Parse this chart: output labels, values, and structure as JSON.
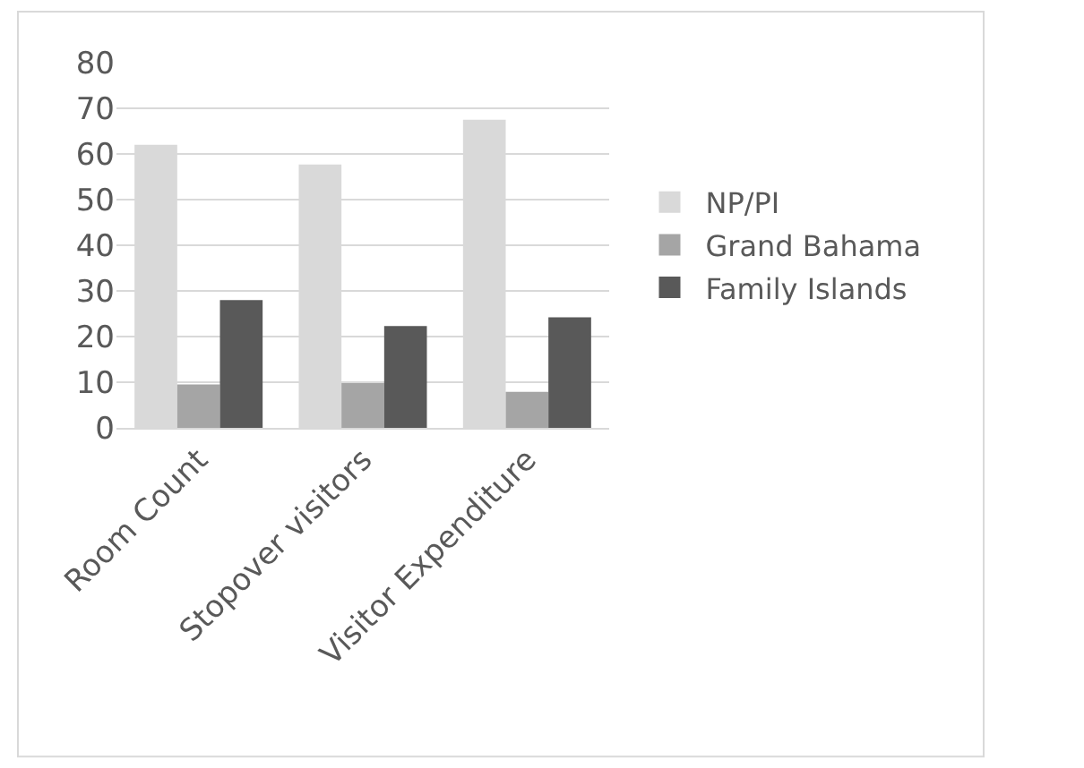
{
  "chart_data": {
    "type": "bar",
    "categories": [
      "Room Count",
      "Stopover visitors",
      "Visitor Expenditure"
    ],
    "series": [
      {
        "name": "NP/PI",
        "color": "#d9d9d9",
        "values": [
          62,
          57.7,
          67.5
        ]
      },
      {
        "name": "Grand Bahama",
        "color": "#a5a5a5",
        "values": [
          9.5,
          9.8,
          7.9
        ]
      },
      {
        "name": "Family Islands",
        "color": "#595959",
        "values": [
          28,
          22.3,
          24.2
        ]
      }
    ],
    "ylim": [
      0,
      80
    ],
    "yticks": [
      0,
      10,
      20,
      30,
      40,
      50,
      60,
      70,
      80
    ],
    "grid": "y",
    "legend": "right"
  }
}
